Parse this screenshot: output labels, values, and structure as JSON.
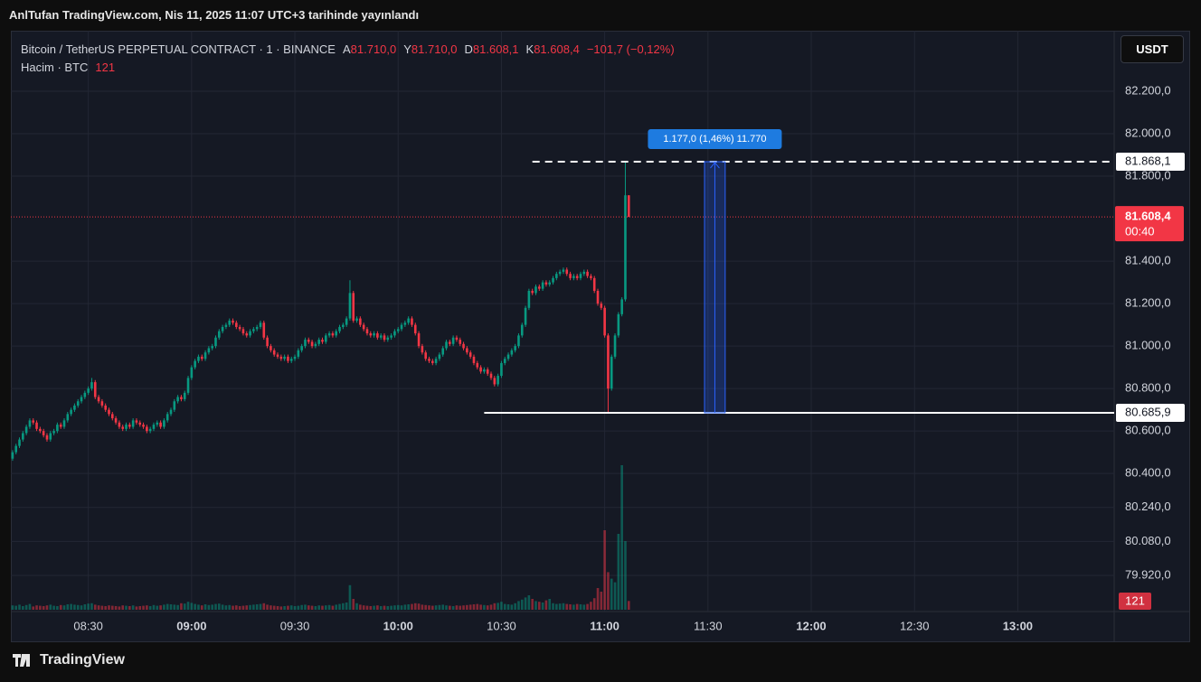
{
  "header": {
    "publisher": "AnlTufan TradingView.com, Nis 11, 2025 11:07 UTC+3 tarihinde yayınlandı"
  },
  "chart_data": {
    "type": "candlestick",
    "symbol": "Bitcoin / TetherUS PERPETUAL CONTRACT · 1 · BINANCE",
    "ohlc_legend": [
      {
        "key": "A",
        "value": "81.710,0"
      },
      {
        "key": "Y",
        "value": "81.710,0"
      },
      {
        "key": "D",
        "value": "81.608,1"
      },
      {
        "key": "K",
        "value": "81.608,4"
      }
    ],
    "change": "−101,7 (−0,12%)",
    "volume_title": "Hacim · BTC",
    "volume_last": "121",
    "currency": "USDT",
    "up_color": "#089981",
    "down_color": "#f23645",
    "grid": true,
    "xlim": [
      -0.5,
      320
    ],
    "xticks": [
      {
        "value": 22,
        "label": "08:30",
        "bold": false
      },
      {
        "value": 52,
        "label": "09:00",
        "bold": true
      },
      {
        "value": 82,
        "label": "09:30",
        "bold": false
      },
      {
        "value": 112,
        "label": "10:00",
        "bold": true
      },
      {
        "value": 142,
        "label": "10:30",
        "bold": false
      },
      {
        "value": 172,
        "label": "11:00",
        "bold": true
      },
      {
        "value": 202,
        "label": "11:30",
        "bold": false
      },
      {
        "value": 232,
        "label": "12:00",
        "bold": true
      },
      {
        "value": 262,
        "label": "12:30",
        "bold": false
      },
      {
        "value": 292,
        "label": "13:00",
        "bold": true
      }
    ],
    "ylim": [
      79750,
      82485
    ],
    "yticks": [
      {
        "value": 82200,
        "label": "82.200,0"
      },
      {
        "value": 82000,
        "label": "82.000,0"
      },
      {
        "value": 81800,
        "label": "81.800,0"
      },
      {
        "value": 81400,
        "label": "81.400,0"
      },
      {
        "value": 81200,
        "label": "81.200,0"
      },
      {
        "value": 81000,
        "label": "81.000,0"
      },
      {
        "value": 80800,
        "label": "80.800,0"
      },
      {
        "value": 80600,
        "label": "80.600,0"
      },
      {
        "value": 80400,
        "label": "80.400,0"
      },
      {
        "value": 80240,
        "label": "80.240,0"
      },
      {
        "value": 80080,
        "label": "80.080,0"
      },
      {
        "value": 79920,
        "label": "79.920,0"
      }
    ],
    "candles": [
      [
        80470,
        80510,
        80460,
        80500
      ],
      [
        80500,
        80540,
        80490,
        80530
      ],
      [
        80530,
        80570,
        80520,
        80560
      ],
      [
        80560,
        80600,
        80550,
        80590
      ],
      [
        80590,
        80630,
        80580,
        80620
      ],
      [
        80620,
        80660,
        80610,
        80650
      ],
      [
        80650,
        80660,
        80630,
        80640
      ],
      [
        80640,
        80650,
        80600,
        80610
      ],
      [
        80610,
        80620,
        80590,
        80600
      ],
      [
        80600,
        80610,
        80570,
        80580
      ],
      [
        80580,
        80590,
        80550,
        80560
      ],
      [
        80560,
        80600,
        80550,
        80590
      ],
      [
        80590,
        80610,
        80580,
        80600
      ],
      [
        80600,
        80640,
        80590,
        80630
      ],
      [
        80630,
        80640,
        80610,
        80620
      ],
      [
        80620,
        80660,
        80610,
        80650
      ],
      [
        80650,
        80690,
        80640,
        80680
      ],
      [
        80680,
        80710,
        80670,
        80700
      ],
      [
        80700,
        80730,
        80690,
        80720
      ],
      [
        80720,
        80750,
        80710,
        80740
      ],
      [
        80740,
        80770,
        80730,
        80760
      ],
      [
        80760,
        80790,
        80750,
        80780
      ],
      [
        80780,
        80810,
        80770,
        80800
      ],
      [
        80800,
        80850,
        80790,
        80830
      ],
      [
        80830,
        80840,
        80750,
        80760
      ],
      [
        80760,
        80770,
        80730,
        80740
      ],
      [
        80740,
        80750,
        80710,
        80720
      ],
      [
        80720,
        80730,
        80690,
        80700
      ],
      [
        80700,
        80710,
        80670,
        80680
      ],
      [
        80680,
        80690,
        80650,
        80660
      ],
      [
        80660,
        80670,
        80630,
        80640
      ],
      [
        80640,
        80650,
        80610,
        80620
      ],
      [
        80620,
        80630,
        80600,
        80610
      ],
      [
        80610,
        80640,
        80600,
        80630
      ],
      [
        80630,
        80640,
        80610,
        80620
      ],
      [
        80620,
        80660,
        80610,
        80650
      ],
      [
        80650,
        80660,
        80630,
        80640
      ],
      [
        80640,
        80650,
        80620,
        80630
      ],
      [
        80630,
        80640,
        80610,
        80620
      ],
      [
        80620,
        80630,
        80590,
        80600
      ],
      [
        80600,
        80620,
        80590,
        80610
      ],
      [
        80610,
        80640,
        80600,
        80630
      ],
      [
        80630,
        80650,
        80620,
        80640
      ],
      [
        80640,
        80650,
        80610,
        80620
      ],
      [
        80620,
        80660,
        80610,
        80650
      ],
      [
        80650,
        80690,
        80640,
        80680
      ],
      [
        80680,
        80710,
        80670,
        80700
      ],
      [
        80700,
        80750,
        80690,
        80740
      ],
      [
        80740,
        80770,
        80730,
        80760
      ],
      [
        80760,
        80770,
        80740,
        80750
      ],
      [
        80750,
        80790,
        80740,
        80780
      ],
      [
        80780,
        80860,
        80770,
        80850
      ],
      [
        80850,
        80910,
        80840,
        80900
      ],
      [
        80900,
        80940,
        80890,
        80930
      ],
      [
        80930,
        80960,
        80920,
        80950
      ],
      [
        80950,
        80960,
        80930,
        80940
      ],
      [
        80940,
        80980,
        80930,
        80970
      ],
      [
        80970,
        81000,
        80960,
        80990
      ],
      [
        80990,
        81010,
        80980,
        81000
      ],
      [
        81000,
        81050,
        80990,
        81040
      ],
      [
        81040,
        81080,
        81030,
        81070
      ],
      [
        81070,
        81100,
        81060,
        81090
      ],
      [
        81090,
        81110,
        81080,
        81100
      ],
      [
        81100,
        81130,
        81090,
        81120
      ],
      [
        81120,
        81130,
        81100,
        81110
      ],
      [
        81110,
        81120,
        81080,
        81090
      ],
      [
        81090,
        81100,
        81070,
        81080
      ],
      [
        81080,
        81090,
        81050,
        81060
      ],
      [
        81060,
        81070,
        81040,
        81050
      ],
      [
        81050,
        81080,
        81040,
        81070
      ],
      [
        81070,
        81090,
        81060,
        81080
      ],
      [
        81080,
        81100,
        81070,
        81090
      ],
      [
        81090,
        81120,
        81080,
        81110
      ],
      [
        81110,
        81120,
        81030,
        81040
      ],
      [
        81040,
        81050,
        80990,
        81000
      ],
      [
        81000,
        81010,
        80970,
        80980
      ],
      [
        80980,
        80990,
        80950,
        80960
      ],
      [
        80960,
        80970,
        80940,
        80950
      ],
      [
        80950,
        80960,
        80930,
        80940
      ],
      [
        80940,
        80960,
        80930,
        80950
      ],
      [
        80950,
        80960,
        80920,
        80930
      ],
      [
        80930,
        80950,
        80920,
        80940
      ],
      [
        80940,
        80960,
        80930,
        80950
      ],
      [
        80950,
        80990,
        80940,
        80980
      ],
      [
        80980,
        81010,
        80970,
        81000
      ],
      [
        81000,
        81040,
        80990,
        81030
      ],
      [
        81030,
        81040,
        81010,
        81020
      ],
      [
        81020,
        81030,
        80990,
        81000
      ],
      [
        81000,
        81020,
        80990,
        81010
      ],
      [
        81010,
        81040,
        81000,
        81030
      ],
      [
        81030,
        81040,
        81010,
        81020
      ],
      [
        81020,
        81060,
        81010,
        81050
      ],
      [
        81050,
        81070,
        81040,
        81060
      ],
      [
        81060,
        81070,
        81040,
        81050
      ],
      [
        81050,
        81080,
        81040,
        81070
      ],
      [
        81070,
        81100,
        81060,
        81090
      ],
      [
        81090,
        81110,
        81080,
        81100
      ],
      [
        81100,
        81140,
        81090,
        81130
      ],
      [
        81130,
        81310,
        81120,
        81250
      ],
      [
        81250,
        81260,
        81110,
        81120
      ],
      [
        81120,
        81140,
        81110,
        81130
      ],
      [
        81130,
        81140,
        81090,
        81100
      ],
      [
        81100,
        81110,
        81070,
        81080
      ],
      [
        81080,
        81090,
        81050,
        81060
      ],
      [
        81060,
        81070,
        81040,
        81050
      ],
      [
        81050,
        81070,
        81040,
        81060
      ],
      [
        81060,
        81070,
        81030,
        81040
      ],
      [
        81040,
        81060,
        81030,
        81050
      ],
      [
        81050,
        81060,
        81020,
        81030
      ],
      [
        81030,
        81050,
        81020,
        81040
      ],
      [
        81040,
        81060,
        81030,
        81050
      ],
      [
        81050,
        81080,
        81040,
        81070
      ],
      [
        81070,
        81090,
        81060,
        81080
      ],
      [
        81080,
        81110,
        81070,
        81100
      ],
      [
        81100,
        81120,
        81090,
        81110
      ],
      [
        81110,
        81140,
        81100,
        81130
      ],
      [
        81130,
        81140,
        81090,
        81100
      ],
      [
        81100,
        81110,
        81050,
        81060
      ],
      [
        81060,
        81070,
        80990,
        81000
      ],
      [
        81000,
        81010,
        80960,
        80970
      ],
      [
        80970,
        80980,
        80930,
        80940
      ],
      [
        80940,
        80950,
        80920,
        80930
      ],
      [
        80930,
        80940,
        80910,
        80920
      ],
      [
        80920,
        80950,
        80910,
        80940
      ],
      [
        80940,
        80970,
        80930,
        80960
      ],
      [
        80960,
        81000,
        80950,
        80990
      ],
      [
        80990,
        81030,
        80980,
        81020
      ],
      [
        81020,
        81030,
        81000,
        81010
      ],
      [
        81010,
        81050,
        81000,
        81040
      ],
      [
        81040,
        81050,
        81020,
        81030
      ],
      [
        81030,
        81040,
        81000,
        81010
      ],
      [
        81010,
        81020,
        80980,
        80990
      ],
      [
        80990,
        81000,
        80960,
        80970
      ],
      [
        80970,
        80980,
        80940,
        80950
      ],
      [
        80950,
        80960,
        80910,
        80920
      ],
      [
        80920,
        80930,
        80890,
        80900
      ],
      [
        80900,
        80910,
        80870,
        80880
      ],
      [
        80880,
        80900,
        80870,
        80890
      ],
      [
        80890,
        80900,
        80860,
        80870
      ],
      [
        80870,
        80880,
        80840,
        80850
      ],
      [
        80850,
        80860,
        80810,
        80820
      ],
      [
        80820,
        80870,
        80810,
        80860
      ],
      [
        80860,
        80930,
        80850,
        80920
      ],
      [
        80920,
        80950,
        80910,
        80940
      ],
      [
        80940,
        80970,
        80930,
        80960
      ],
      [
        80960,
        80990,
        80950,
        80980
      ],
      [
        80980,
        81010,
        80970,
        81000
      ],
      [
        81000,
        81060,
        80990,
        81050
      ],
      [
        81050,
        81110,
        81040,
        81100
      ],
      [
        81100,
        81190,
        81090,
        81180
      ],
      [
        81180,
        81270,
        81170,
        81260
      ],
      [
        81260,
        81270,
        81240,
        81250
      ],
      [
        81250,
        81290,
        81240,
        81280
      ],
      [
        81280,
        81290,
        81260,
        81270
      ],
      [
        81270,
        81310,
        81260,
        81300
      ],
      [
        81300,
        81310,
        81280,
        81290
      ],
      [
        81290,
        81310,
        81280,
        81300
      ],
      [
        81300,
        81330,
        81290,
        81320
      ],
      [
        81320,
        81350,
        81310,
        81340
      ],
      [
        81340,
        81360,
        81330,
        81350
      ],
      [
        81350,
        81370,
        81340,
        81360
      ],
      [
        81360,
        81370,
        81330,
        81340
      ],
      [
        81340,
        81350,
        81310,
        81320
      ],
      [
        81320,
        81340,
        81310,
        81330
      ],
      [
        81330,
        81340,
        81310,
        81320
      ],
      [
        81320,
        81350,
        81310,
        81340
      ],
      [
        81340,
        81360,
        81330,
        81350
      ],
      [
        81350,
        81360,
        81320,
        81330
      ],
      [
        81330,
        81340,
        81310,
        81320
      ],
      [
        81320,
        81330,
        81250,
        81260
      ],
      [
        81260,
        81270,
        81190,
        81200
      ],
      [
        81200,
        81210,
        81170,
        81180
      ],
      [
        81180,
        81190,
        81040,
        81050
      ],
      [
        81050,
        81060,
        80685.9,
        80800
      ],
      [
        80800,
        80960,
        80790,
        80950
      ],
      [
        80950,
        81060,
        80940,
        81050
      ],
      [
        81050,
        81160,
        81040,
        81150
      ],
      [
        81150,
        81230,
        81140,
        81220
      ],
      [
        81220,
        81868.1,
        81210,
        81710
      ],
      [
        81710,
        81710,
        81608.1,
        81608.4
      ]
    ],
    "volume": [
      60,
      55,
      70,
      50,
      65,
      80,
      45,
      60,
      55,
      50,
      60,
      70,
      55,
      50,
      65,
      60,
      75,
      80,
      70,
      65,
      60,
      75,
      85,
      90,
      70,
      60,
      55,
      50,
      60,
      55,
      50,
      45,
      60,
      55,
      50,
      60,
      45,
      50,
      55,
      60,
      50,
      65,
      55,
      60,
      70,
      80,
      75,
      70,
      65,
      90,
      85,
      110,
      95,
      80,
      70,
      60,
      75,
      65,
      70,
      80,
      85,
      70,
      60,
      65,
      55,
      60,
      50,
      55,
      60,
      65,
      70,
      75,
      80,
      90,
      70,
      60,
      55,
      50,
      45,
      50,
      55,
      60,
      50,
      55,
      65,
      70,
      60,
      55,
      50,
      60,
      55,
      60,
      65,
      55,
      70,
      80,
      90,
      100,
      340,
      150,
      90,
      70,
      60,
      55,
      50,
      55,
      60,
      50,
      55,
      50,
      55,
      60,
      65,
      60,
      70,
      75,
      80,
      90,
      85,
      70,
      65,
      60,
      55,
      60,
      65,
      70,
      60,
      55,
      50,
      60,
      55,
      60,
      65,
      70,
      75,
      80,
      70,
      65,
      60,
      70,
      90,
      95,
      110,
      80,
      75,
      70,
      90,
      120,
      140,
      170,
      200,
      150,
      120,
      110,
      100,
      130,
      150,
      90,
      80,
      85,
      90,
      80,
      75,
      70,
      80,
      75,
      70,
      80,
      110,
      160,
      300,
      250,
      1100,
      520,
      430,
      380,
      1050,
      2000,
      950,
      121
    ],
    "levels": [
      {
        "value": 81868.1,
        "label": "81.868,1",
        "style": "dashed"
      },
      {
        "value": 80685.9,
        "label": "80.685,9",
        "style": "solid"
      }
    ],
    "current": {
      "value": 81608.4,
      "label": "81.608,4",
      "countdown": "00:40"
    },
    "measure": {
      "label": "1.177,0 (1,46%) 11.770"
    }
  },
  "footer": {
    "brand": "TradingView"
  }
}
